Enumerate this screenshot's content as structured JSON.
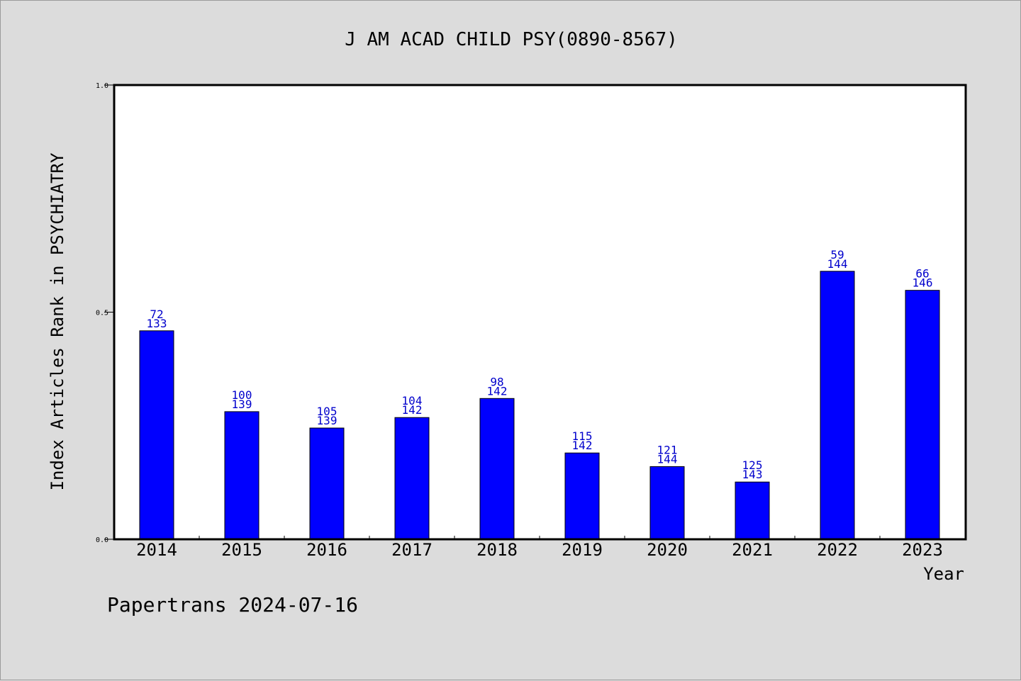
{
  "chart_data": {
    "type": "bar",
    "title": "J AM ACAD CHILD PSY(0890-8567)",
    "xlabel": "Year",
    "ylabel": "Index Articles Rank in PSYCHIATRY",
    "ylim": [
      0,
      1
    ],
    "yticks": [
      "0.0",
      "0.5",
      "1.0"
    ],
    "categories": [
      "2014",
      "2015",
      "2016",
      "2017",
      "2018",
      "2019",
      "2020",
      "2021",
      "2022",
      "2023"
    ],
    "values": [
      0.459,
      0.281,
      0.245,
      0.268,
      0.31,
      0.19,
      0.16,
      0.126,
      0.59,
      0.548
    ],
    "ranks": [
      "72",
      "100",
      "105",
      "104",
      "98",
      "115",
      "121",
      "125",
      "59",
      "66"
    ],
    "totals": [
      "133",
      "139",
      "139",
      "142",
      "142",
      "142",
      "144",
      "143",
      "144",
      "146"
    ],
    "bar_color": "#0000ff",
    "label_color": "#0000cc",
    "grid": false
  },
  "footer": "Papertrans 2024-07-16"
}
